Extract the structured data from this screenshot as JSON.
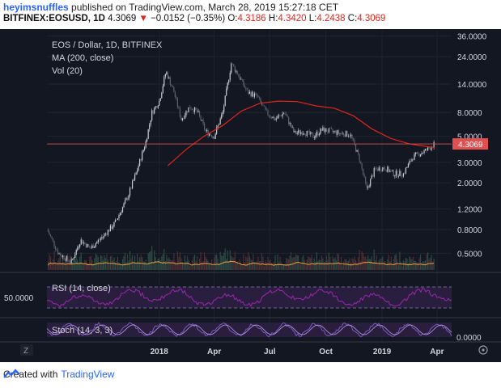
{
  "header": {
    "author": "heyimsnuffles",
    "published_text": "published on TradingView.com, March 28, 2019 15:27:18 CET",
    "symbol": "BITFINEX:EOSUSD, 1D",
    "last": "4.3069",
    "change": "−0.0152 (−0.35%)",
    "o_label": "O:",
    "o": "4.3186",
    "h_label": "H:",
    "h": "4.3420",
    "l_label": "L:",
    "l": "4.2438",
    "c_label": "C:",
    "c": "4.3069"
  },
  "legend": {
    "title": "EOS / Dollar, 1D, BITFINEX",
    "ma": "MA (200, close)",
    "vol": "Vol (20)"
  },
  "rsi": {
    "label": "RSI (14, close)",
    "level": "50.0000"
  },
  "stoch": {
    "label": "Stoch (14, 3, 3)",
    "axis": "0.0000"
  },
  "last_price_tag": "4.3069",
  "timezone_button": "Z",
  "footer": {
    "created": "Created with",
    "brand": "TradingView"
  },
  "colors": {
    "background": "#131722",
    "up": "#7f8590",
    "ma": "#e0241b",
    "rsi": "#9c27b0",
    "stoch": "#7e57c2",
    "last_price": "#e05050"
  },
  "chart_data": {
    "type": "candlestick",
    "title": "EOS / Dollar, 1D, BITFINEX",
    "y_scale": "log",
    "y_ticks": [
      "36.0000",
      "24.0000",
      "14.0000",
      "8.0000",
      "5.0000",
      "3.0000",
      "2.0000",
      "1.2000",
      "0.8000",
      "0.5000"
    ],
    "y_tick_values": [
      36,
      24,
      14,
      8,
      5,
      3,
      2,
      1.2,
      0.8,
      0.5
    ],
    "x_ticks": [
      "2018",
      "Apr",
      "Jul",
      "Oct",
      "2019",
      "Apr"
    ],
    "x_tick_dates": [
      "2018-01-01",
      "2018-04-01",
      "2018-07-01",
      "2018-10-01",
      "2019-01-01",
      "2019-04-01"
    ],
    "x_range": [
      "2017-07-01",
      "2019-04-25"
    ],
    "y_range": [
      0.36,
      40
    ],
    "price": [
      [
        "2017-07-01",
        0.8
      ],
      [
        "2017-07-20",
        0.5
      ],
      [
        "2017-08-10",
        0.42
      ],
      [
        "2017-08-25",
        0.65
      ],
      [
        "2017-09-10",
        0.55
      ],
      [
        "2017-10-01",
        0.7
      ],
      [
        "2017-10-20",
        0.9
      ],
      [
        "2017-11-10",
        1.5
      ],
      [
        "2017-11-25",
        2.5
      ],
      [
        "2017-12-10",
        4.5
      ],
      [
        "2017-12-20",
        8
      ],
      [
        "2018-01-01",
        10
      ],
      [
        "2018-01-12",
        18
      ],
      [
        "2018-01-25",
        12
      ],
      [
        "2018-02-06",
        7
      ],
      [
        "2018-02-20",
        9
      ],
      [
        "2018-03-05",
        8
      ],
      [
        "2018-03-18",
        5.5
      ],
      [
        "2018-04-01",
        5
      ],
      [
        "2018-04-15",
        8
      ],
      [
        "2018-04-29",
        21
      ],
      [
        "2018-05-10",
        17
      ],
      [
        "2018-05-25",
        12
      ],
      [
        "2018-06-10",
        11
      ],
      [
        "2018-06-25",
        8
      ],
      [
        "2018-07-10",
        7
      ],
      [
        "2018-07-25",
        8
      ],
      [
        "2018-08-10",
        5.3
      ],
      [
        "2018-08-25",
        5.5
      ],
      [
        "2018-09-10",
        5
      ],
      [
        "2018-09-25",
        5.7
      ],
      [
        "2018-10-10",
        5.5
      ],
      [
        "2018-10-25",
        5.3
      ],
      [
        "2018-11-10",
        5.2
      ],
      [
        "2018-11-25",
        3.2
      ],
      [
        "2018-12-07",
        1.75
      ],
      [
        "2018-12-20",
        2.6
      ],
      [
        "2019-01-05",
        2.7
      ],
      [
        "2019-01-20",
        2.4
      ],
      [
        "2019-02-05",
        2.4
      ],
      [
        "2019-02-20",
        3.3
      ],
      [
        "2019-03-05",
        3.6
      ],
      [
        "2019-03-15",
        3.8
      ],
      [
        "2019-03-28",
        4.3069
      ]
    ],
    "ma200": [
      [
        "2018-01-15",
        2.8
      ],
      [
        "2018-02-15",
        3.9
      ],
      [
        "2018-03-15",
        5.0
      ],
      [
        "2018-04-15",
        6.2
      ],
      [
        "2018-05-15",
        8.2
      ],
      [
        "2018-06-15",
        9.6
      ],
      [
        "2018-07-15",
        10.0
      ],
      [
        "2018-08-15",
        9.9
      ],
      [
        "2018-09-15",
        9.1
      ],
      [
        "2018-10-15",
        8.7
      ],
      [
        "2018-11-15",
        7.5
      ],
      [
        "2018-12-15",
        5.8
      ],
      [
        "2019-01-15",
        4.8
      ],
      [
        "2019-02-15",
        4.3
      ],
      [
        "2019-03-28",
        4.0
      ]
    ],
    "horizontal_line": 4.3069
  }
}
